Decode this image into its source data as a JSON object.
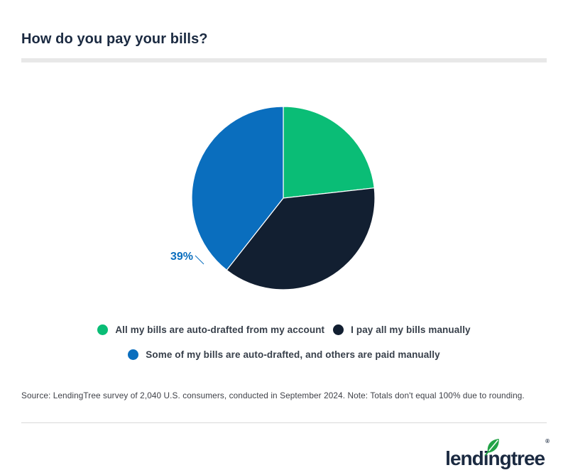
{
  "page": {
    "title": "How do you pay your bills?"
  },
  "chart_data": {
    "type": "pie",
    "title": "How do you pay your bills?",
    "start_angle_deg": 0,
    "direction": "clockwise",
    "segments": [
      {
        "label": "All my bills are auto-drafted from my account",
        "value": 23,
        "display": "23%",
        "color": "#0abd76"
      },
      {
        "label": "I pay all my bills manually",
        "value": 37,
        "display": "37%",
        "color": "#121f31"
      },
      {
        "label": "Some of my bills are auto-drafted, and others are paid manually",
        "value": 39,
        "display": "39%",
        "color": "#0a6ebe"
      }
    ],
    "legend_position": "bottom",
    "note": "Totals don't equal 100% due to rounding."
  },
  "legend": {
    "items": [
      {
        "label": "All my bills are auto-drafted from my account",
        "color": "#0abd76"
      },
      {
        "label": "I pay all my bills manually",
        "color": "#121f31"
      },
      {
        "label": "Some of my bills are auto-drafted, and others are paid manually",
        "color": "#0a6ebe"
      }
    ]
  },
  "footer": {
    "source": "Source: LendingTree survey of 2,040 U.S. consumers, conducted in September 2024. Note: Totals don't equal 100% due to rounding.",
    "logo_text": "lendingtree",
    "logo_registered": "®"
  },
  "colors": {
    "title_text": "#1b2a41",
    "legend_text": "#373f4a",
    "source_text": "#3f4148",
    "title_rule": "#e8e8e8",
    "footer_rule": "#d9d9d9",
    "leaf_green": "#23a347",
    "background": "#ffffff"
  }
}
